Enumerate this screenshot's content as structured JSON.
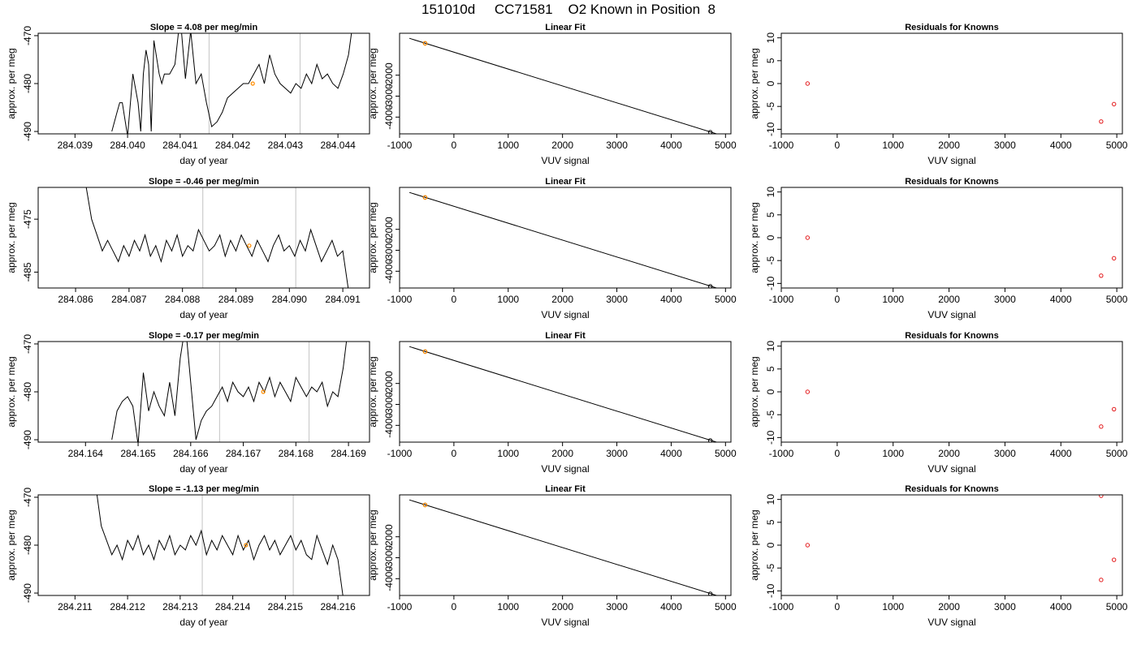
{
  "figure": {
    "title": "151010d     CC71581    O2 Known in Position  8",
    "colors": {
      "trace": "#000000",
      "marker": "#ff8c00",
      "residual": "#e31a1c",
      "vline": "#cccccc"
    }
  },
  "chart_data": [
    {
      "type": "line",
      "row": 0,
      "col": 0,
      "title": "Slope =  4.08  per meg/min",
      "xlabel": "day of year",
      "ylabel": "approx. per meg",
      "xlim": [
        284.0383,
        284.0446
      ],
      "ylim": [
        -490.5,
        -469.5
      ],
      "xticks": [
        284.039,
        284.04,
        284.041,
        284.042,
        284.043,
        284.044
      ],
      "xtick_labels": [
        "284.039",
        "284.040",
        "284.041",
        "284.042",
        "284.043",
        "284.044"
      ],
      "yticks": [
        -470,
        -480,
        -490
      ],
      "ytick_labels": [
        "-470",
        "-480",
        "-490"
      ],
      "vlines": [
        284.04155,
        284.04328
      ],
      "marker": {
        "x": 284.04238,
        "y": -480
      },
      "series": [
        {
          "x": [
            284.0397,
            284.0398,
            284.03985,
            284.0399,
            284.04,
            284.0401,
            284.0402,
            284.04025,
            284.0403,
            284.04035,
            284.0404,
            284.04045,
            284.0405,
            284.0406,
            284.04065,
            284.0407,
            284.0408,
            284.0409,
            284.041,
            284.0411,
            284.0412,
            284.0413,
            284.0414,
            284.0415,
            284.0416,
            284.0417,
            284.0418,
            284.0419,
            284.042,
            284.0421,
            284.0422,
            284.0423,
            284.0424,
            284.0425,
            284.0426,
            284.0427,
            284.0428,
            284.0429,
            284.043,
            284.0431,
            284.0432,
            284.0433,
            284.0434,
            284.0435,
            284.0436,
            284.0437,
            284.0438,
            284.0439,
            284.044,
            284.0441,
            284.0442,
            284.0443
          ],
          "y": [
            -490,
            -486,
            -484,
            -484,
            -491,
            -478,
            -484,
            -490,
            -478,
            -473,
            -476,
            -490,
            -471,
            -478,
            -480,
            -478,
            -478,
            -476,
            -466,
            -479,
            -469,
            -480,
            -478,
            -484,
            -489,
            -488,
            -486,
            -483,
            -482,
            -481,
            -480,
            -480,
            -478,
            -476,
            -480,
            -474,
            -478,
            -480,
            -481,
            -482,
            -480,
            -481,
            -478,
            -480,
            -476,
            -479,
            -478,
            -480,
            -481,
            -478,
            -474,
            -466
          ]
        }
      ]
    },
    {
      "type": "line",
      "row": 0,
      "col": 1,
      "title": "Linear Fit",
      "xlabel": "VUV signal",
      "ylabel": "approx. per meg",
      "xlim": [
        -1000,
        5100
      ],
      "ylim": [
        -4800,
        0
      ],
      "xticks": [
        -1000,
        0,
        1000,
        2000,
        3000,
        4000,
        5000
      ],
      "xtick_labels": [
        "-1000",
        "0",
        "1000",
        "2000",
        "3000",
        "4000",
        "5000"
      ],
      "yticks": [
        -2000,
        -3000,
        -4000
      ],
      "ytick_labels": [
        "-2000",
        "-3000",
        "-4000"
      ],
      "fit_line": {
        "x": [
          -820,
          4960
        ],
        "y": [
          -240,
          -4900
        ]
      },
      "points": {
        "x": [
          -530,
          4720,
          4950
        ],
        "y": [
          -480,
          -4720,
          -4910
        ]
      },
      "highlight": {
        "x": -530,
        "y": -480
      }
    },
    {
      "type": "scatter",
      "row": 0,
      "col": 2,
      "title": "Residuals for Knowns",
      "xlabel": "VUV signal",
      "ylabel": "approx. per meg",
      "xlim": [
        -1000,
        5100
      ],
      "ylim": [
        -11,
        11
      ],
      "xticks": [
        -1000,
        0,
        1000,
        2000,
        3000,
        4000,
        5000
      ],
      "xtick_labels": [
        "-1000",
        "0",
        "1000",
        "2000",
        "3000",
        "4000",
        "5000"
      ],
      "yticks": [
        10,
        5,
        0,
        -5,
        -10
      ],
      "ytick_labels": [
        "10",
        "5",
        "0",
        "-5",
        "-10"
      ],
      "points": {
        "x": [
          -530,
          4720,
          4950
        ],
        "y": [
          0,
          -8.3,
          -4.5
        ]
      }
    },
    {
      "type": "line",
      "row": 1,
      "col": 0,
      "title": "Slope =  -0.46  per meg/min",
      "xlabel": "day of year",
      "ylabel": "approx. per meg",
      "xlim": [
        284.0853,
        284.0915
      ],
      "ylim": [
        -488,
        -469
      ],
      "xticks": [
        284.086,
        284.087,
        284.088,
        284.089,
        284.09,
        284.091
      ],
      "xtick_labels": [
        "284.086",
        "284.087",
        "284.088",
        "284.089",
        "284.090",
        "284.091"
      ],
      "yticks": [
        -475,
        -485
      ],
      "ytick_labels": [
        "-475",
        "-485"
      ],
      "vlines": [
        284.08838,
        284.09012
      ],
      "marker": {
        "x": 284.08925,
        "y": -480
      },
      "series": [
        {
          "x": [
            284.0862,
            284.0863,
            284.0864,
            284.0865,
            284.0866,
            284.0867,
            284.0868,
            284.0869,
            284.087,
            284.0871,
            284.0872,
            284.0873,
            284.0874,
            284.0875,
            284.0876,
            284.0877,
            284.0878,
            284.0879,
            284.088,
            284.0881,
            284.0882,
            284.0883,
            284.0884,
            284.0885,
            284.0886,
            284.0887,
            284.0888,
            284.0889,
            284.089,
            284.0891,
            284.0892,
            284.0893,
            284.0894,
            284.0895,
            284.0896,
            284.0897,
            284.0898,
            284.0899,
            284.09,
            284.0901,
            284.0902,
            284.0903,
            284.0904,
            284.0905,
            284.0906,
            284.0907,
            284.0908,
            284.0909,
            284.091,
            284.0911
          ],
          "y": [
            -469,
            -475,
            -478,
            -481,
            -479,
            -481,
            -483,
            -480,
            -482,
            -479,
            -481,
            -478,
            -482,
            -480,
            -483,
            -479,
            -481,
            -478,
            -482,
            -480,
            -481,
            -477,
            -479,
            -481,
            -480,
            -478,
            -482,
            -479,
            -481,
            -478,
            -480,
            -482,
            -479,
            -481,
            -483,
            -480,
            -478,
            -481,
            -480,
            -482,
            -479,
            -481,
            -477,
            -480,
            -483,
            -481,
            -479,
            -482,
            -481,
            -488
          ]
        }
      ]
    },
    {
      "type": "line",
      "row": 1,
      "col": 1,
      "title": "Linear Fit",
      "xlabel": "VUV signal",
      "ylabel": "approx. per meg",
      "xlim": [
        -1000,
        5100
      ],
      "ylim": [
        -4800,
        0
      ],
      "xticks": [
        -1000,
        0,
        1000,
        2000,
        3000,
        4000,
        5000
      ],
      "xtick_labels": [
        "-1000",
        "0",
        "1000",
        "2000",
        "3000",
        "4000",
        "5000"
      ],
      "yticks": [
        -2000,
        -3000,
        -4000
      ],
      "ytick_labels": [
        "-2000",
        "-3000",
        "-4000"
      ],
      "fit_line": {
        "x": [
          -820,
          4960
        ],
        "y": [
          -240,
          -4900
        ]
      },
      "points": {
        "x": [
          -530,
          4720,
          4950
        ],
        "y": [
          -480,
          -4720,
          -4910
        ]
      },
      "highlight": {
        "x": -530,
        "y": -480
      }
    },
    {
      "type": "scatter",
      "row": 1,
      "col": 2,
      "title": "Residuals for Knowns",
      "xlabel": "VUV signal",
      "ylabel": "approx. per meg",
      "xlim": [
        -1000,
        5100
      ],
      "ylim": [
        -11,
        11
      ],
      "xticks": [
        -1000,
        0,
        1000,
        2000,
        3000,
        4000,
        5000
      ],
      "xtick_labels": [
        "-1000",
        "0",
        "1000",
        "2000",
        "3000",
        "4000",
        "5000"
      ],
      "yticks": [
        10,
        5,
        0,
        -5,
        -10
      ],
      "ytick_labels": [
        "10",
        "5",
        "0",
        "-5",
        "-10"
      ],
      "points": {
        "x": [
          -530,
          4720,
          4950
        ],
        "y": [
          0,
          -8.3,
          -4.5
        ]
      }
    },
    {
      "type": "line",
      "row": 2,
      "col": 0,
      "title": "Slope =  -0.17  per meg/min",
      "xlabel": "day of year",
      "ylabel": "approx. per meg",
      "xlim": [
        284.1631,
        284.1694
      ],
      "ylim": [
        -490.5,
        -469.5
      ],
      "xticks": [
        284.164,
        284.165,
        284.166,
        284.167,
        284.168,
        284.169
      ],
      "xtick_labels": [
        "284.164",
        "284.165",
        "284.166",
        "284.167",
        "284.168",
        "284.169"
      ],
      "yticks": [
        -470,
        -480,
        -490
      ],
      "ytick_labels": [
        "-470",
        "-480",
        "-490"
      ],
      "vlines": [
        284.16655,
        284.16825
      ],
      "marker": {
        "x": 284.16738,
        "y": -480
      },
      "series": [
        {
          "x": [
            284.1645,
            284.1646,
            284.1647,
            284.1648,
            284.1649,
            284.165,
            284.1651,
            284.1652,
            284.1653,
            284.1654,
            284.1655,
            284.1656,
            284.1657,
            284.1658,
            284.1659,
            284.166,
            284.1661,
            284.1662,
            284.1663,
            284.1664,
            284.1665,
            284.1666,
            284.1667,
            284.1668,
            284.1669,
            284.167,
            284.1671,
            284.1672,
            284.1673,
            284.1674,
            284.1675,
            284.1676,
            284.1677,
            284.1678,
            284.1679,
            284.168,
            284.1681,
            284.1682,
            284.1683,
            284.1684,
            284.1685,
            284.1686,
            284.1687,
            284.1688,
            284.1689,
            284.169
          ],
          "y": [
            -490,
            -484,
            -482,
            -481,
            -483,
            -491,
            -476,
            -484,
            -480,
            -483,
            -485,
            -478,
            -485,
            -473,
            -466,
            -478,
            -490,
            -486,
            -484,
            -483,
            -481,
            -479,
            -482,
            -478,
            -480,
            -481,
            -479,
            -482,
            -478,
            -480,
            -477,
            -481,
            -478,
            -480,
            -482,
            -477,
            -479,
            -481,
            -479,
            -480,
            -478,
            -483,
            -480,
            -481,
            -475,
            -466
          ]
        }
      ]
    },
    {
      "type": "line",
      "row": 2,
      "col": 1,
      "title": "Linear Fit",
      "xlabel": "VUV signal",
      "ylabel": "approx. per meg",
      "xlim": [
        -1000,
        5100
      ],
      "ylim": [
        -4800,
        0
      ],
      "xticks": [
        -1000,
        0,
        1000,
        2000,
        3000,
        4000,
        5000
      ],
      "xtick_labels": [
        "-1000",
        "0",
        "1000",
        "2000",
        "3000",
        "4000",
        "5000"
      ],
      "yticks": [
        -2000,
        -3000,
        -4000
      ],
      "ytick_labels": [
        "-2000",
        "-3000",
        "-4000"
      ],
      "fit_line": {
        "x": [
          -820,
          4960
        ],
        "y": [
          -240,
          -4900
        ]
      },
      "points": {
        "x": [
          -530,
          4720,
          4950
        ],
        "y": [
          -480,
          -4720,
          -4910
        ]
      },
      "highlight": {
        "x": -530,
        "y": -480
      }
    },
    {
      "type": "scatter",
      "row": 2,
      "col": 2,
      "title": "Residuals for Knowns",
      "xlabel": "VUV signal",
      "ylabel": "approx. per meg",
      "xlim": [
        -1000,
        5100
      ],
      "ylim": [
        -11,
        11
      ],
      "xticks": [
        -1000,
        0,
        1000,
        2000,
        3000,
        4000,
        5000
      ],
      "xtick_labels": [
        "-1000",
        "0",
        "1000",
        "2000",
        "3000",
        "4000",
        "5000"
      ],
      "yticks": [
        10,
        5,
        0,
        -5,
        -10
      ],
      "ytick_labels": [
        "10",
        "5",
        "0",
        "-5",
        "-10"
      ],
      "points": {
        "x": [
          -530,
          4720,
          4950
        ],
        "y": [
          0,
          -7.6,
          -3.8
        ]
      }
    },
    {
      "type": "line",
      "row": 3,
      "col": 0,
      "title": "Slope =  -1.13  per meg/min",
      "xlabel": "day of year",
      "ylabel": "approx. per meg",
      "xlim": [
        284.2103,
        284.2166
      ],
      "ylim": [
        -490.5,
        -469.5
      ],
      "xticks": [
        284.211,
        284.212,
        284.213,
        284.214,
        284.215,
        284.216
      ],
      "xtick_labels": [
        "284.211",
        "284.212",
        "284.213",
        "284.214",
        "284.215",
        "284.216"
      ],
      "yticks": [
        -470,
        -480,
        -490
      ],
      "ytick_labels": [
        "-470",
        "-480",
        "-490"
      ],
      "vlines": [
        284.21342,
        284.21515
      ],
      "marker": {
        "x": 284.21425,
        "y": -480
      },
      "series": [
        {
          "x": [
            284.2114,
            284.2115,
            284.2116,
            284.2117,
            284.2118,
            284.2119,
            284.212,
            284.2121,
            284.2122,
            284.2123,
            284.2124,
            284.2125,
            284.2126,
            284.2127,
            284.2128,
            284.2129,
            284.213,
            284.2131,
            284.2132,
            284.2133,
            284.2134,
            284.2135,
            284.2136,
            284.2137,
            284.2138,
            284.2139,
            284.214,
            284.2141,
            284.2142,
            284.2143,
            284.2144,
            284.2145,
            284.2146,
            284.2147,
            284.2148,
            284.2149,
            284.215,
            284.2151,
            284.2152,
            284.2153,
            284.2154,
            284.2155,
            284.2156,
            284.2157,
            284.2158,
            284.2159,
            284.216,
            284.2161
          ],
          "y": [
            -468,
            -476,
            -479,
            -482,
            -480,
            -483,
            -479,
            -481,
            -478,
            -482,
            -480,
            -483,
            -479,
            -481,
            -478,
            -482,
            -480,
            -481,
            -478,
            -480,
            -477,
            -482,
            -479,
            -481,
            -478,
            -480,
            -482,
            -478,
            -481,
            -479,
            -483,
            -480,
            -478,
            -481,
            -479,
            -482,
            -480,
            -478,
            -481,
            -479,
            -482,
            -483,
            -478,
            -481,
            -484,
            -480,
            -483,
            -491
          ]
        }
      ]
    },
    {
      "type": "line",
      "row": 3,
      "col": 1,
      "title": "Linear Fit",
      "xlabel": "VUV signal",
      "ylabel": "approx. per meg",
      "xlim": [
        -1000,
        5100
      ],
      "ylim": [
        -4800,
        0
      ],
      "xticks": [
        -1000,
        0,
        1000,
        2000,
        3000,
        4000,
        5000
      ],
      "xtick_labels": [
        "-1000",
        "0",
        "1000",
        "2000",
        "3000",
        "4000",
        "5000"
      ],
      "yticks": [
        -2000,
        -3000,
        -4000
      ],
      "ytick_labels": [
        "-2000",
        "-3000",
        "-4000"
      ],
      "fit_line": {
        "x": [
          -820,
          4960
        ],
        "y": [
          -240,
          -4900
        ]
      },
      "points": {
        "x": [
          -530,
          4720,
          4950
        ],
        "y": [
          -480,
          -4720,
          -4910
        ]
      },
      "highlight": {
        "x": -530,
        "y": -480
      }
    },
    {
      "type": "scatter",
      "row": 3,
      "col": 2,
      "title": "Residuals for Knowns",
      "xlabel": "VUV signal",
      "ylabel": "approx. per meg",
      "xlim": [
        -1000,
        5100
      ],
      "ylim": [
        -11,
        11
      ],
      "xticks": [
        -1000,
        0,
        1000,
        2000,
        3000,
        4000,
        5000
      ],
      "xtick_labels": [
        "-1000",
        "0",
        "1000",
        "2000",
        "3000",
        "4000",
        "5000"
      ],
      "yticks": [
        10,
        5,
        0,
        -5,
        -10
      ],
      "ytick_labels": [
        "10",
        "5",
        "0",
        "-5",
        "-10"
      ],
      "points": {
        "x": [
          -530,
          4720,
          4720,
          4950
        ],
        "y": [
          0,
          10.8,
          -7.6,
          -3.2
        ]
      }
    }
  ]
}
